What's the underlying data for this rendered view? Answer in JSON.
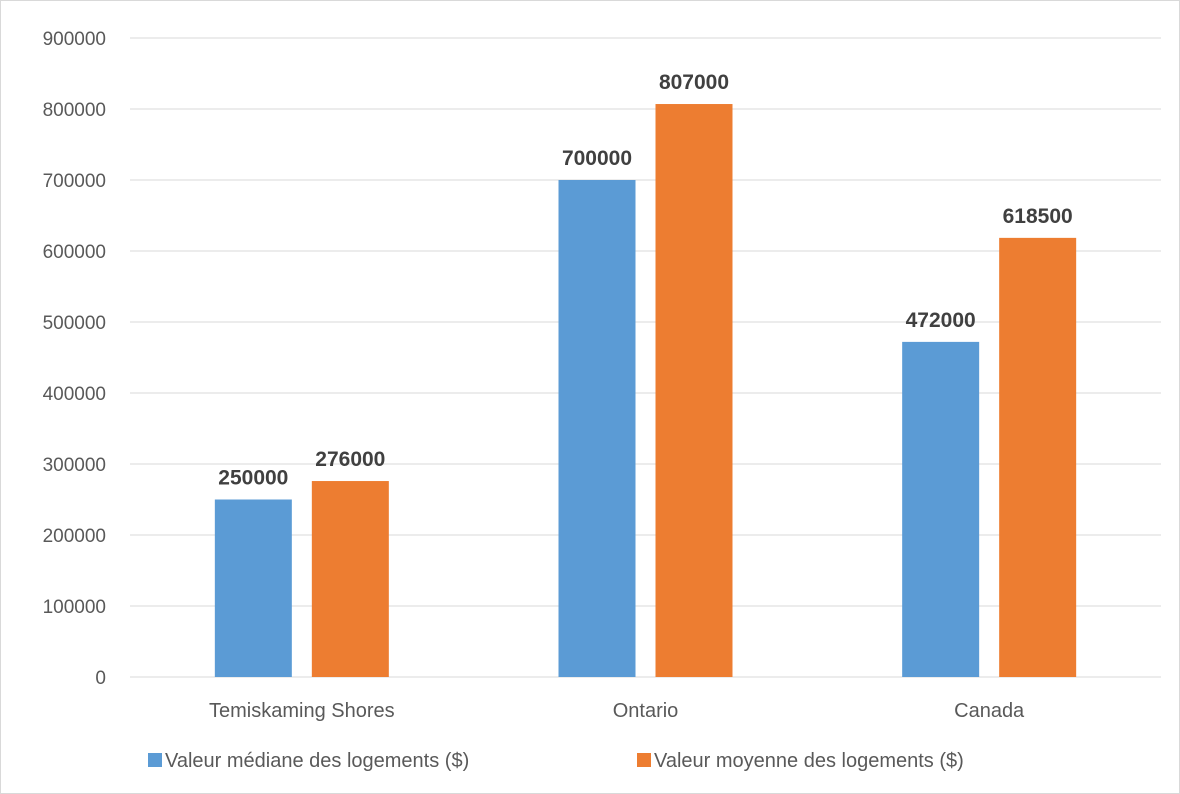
{
  "chart_data": {
    "type": "bar",
    "title": "",
    "xlabel": "",
    "ylabel": "",
    "categories": [
      "Temiskaming Shores",
      "Ontario",
      "Canada"
    ],
    "series": [
      {
        "name": "Valeur médiane des logements ($)",
        "color": "#5b9bd5",
        "values": [
          250000,
          700000,
          472000
        ],
        "labels": [
          "250000",
          "700000",
          "472000"
        ]
      },
      {
        "name": "Valeur moyenne des logements ($)",
        "color": "#ed7d31",
        "values": [
          276000,
          807000,
          618500
        ],
        "labels": [
          "276000",
          "807000",
          "618500"
        ]
      }
    ],
    "ylim": [
      0,
      900000
    ],
    "yticks": [
      "0",
      "100000",
      "200000",
      "300000",
      "400000",
      "500000",
      "600000",
      "700000",
      "800000",
      "900000"
    ],
    "grid": true,
    "legend": "bottom",
    "data_labels": true
  }
}
